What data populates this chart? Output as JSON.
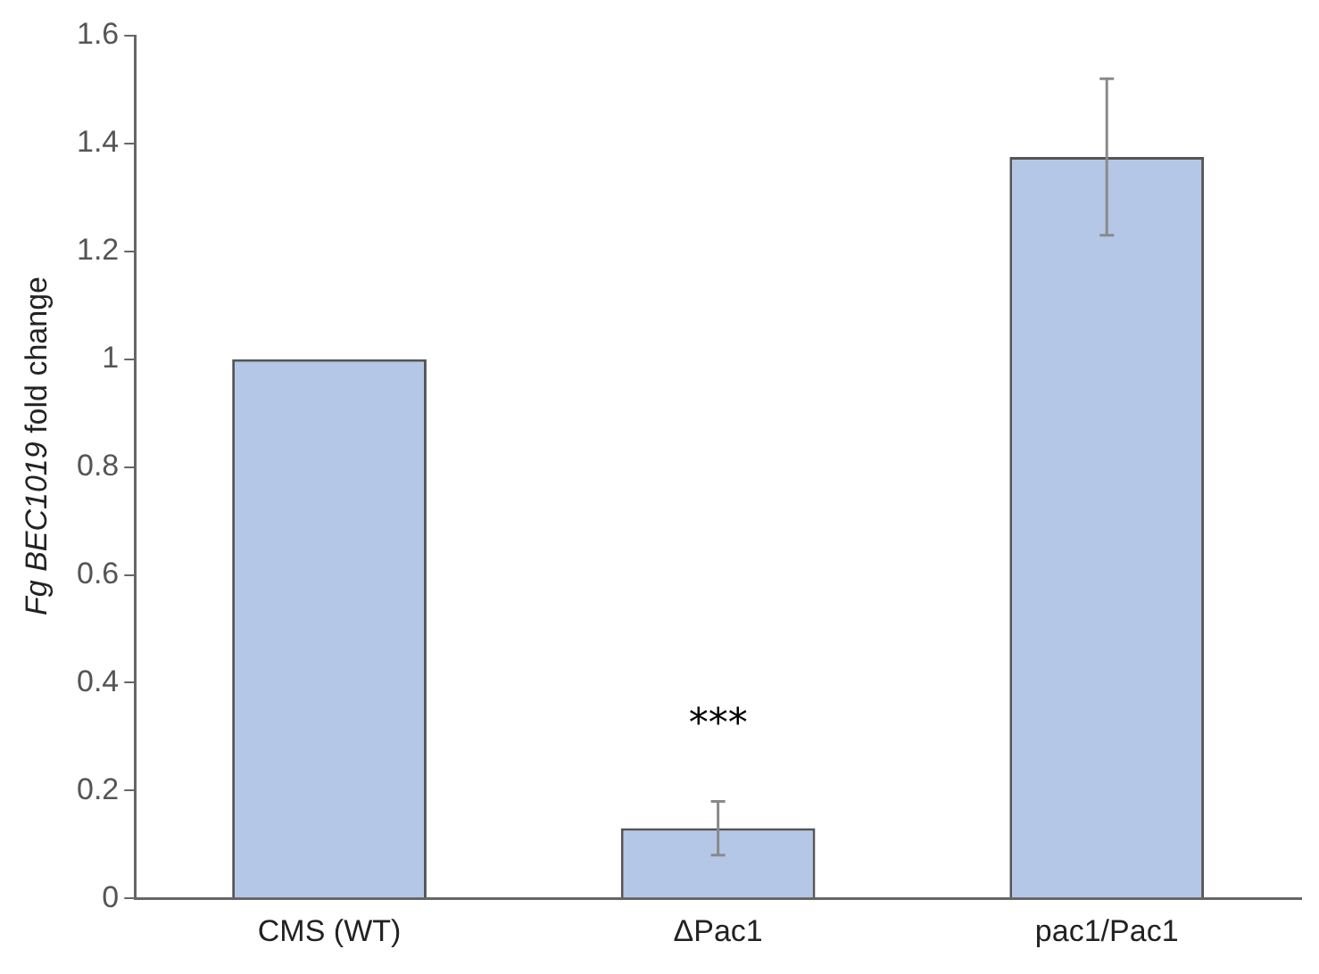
{
  "chart_data": {
    "type": "bar",
    "ylabel": "Fg BEC1019 fold change",
    "categories": [
      "CMS (WT)",
      "ΔPac1",
      "pac1/Pac1"
    ],
    "values": [
      1,
      0.13,
      1.375
    ],
    "errors": [
      null,
      0.05,
      0.145
    ],
    "color": "#b4c7e7",
    "ylim": [
      0,
      1.6
    ],
    "yticks": [
      0,
      0.2,
      0.4,
      0.6,
      0.8,
      1,
      1.2,
      1.4,
      1.6
    ],
    "grid": false,
    "legend": false,
    "annotations": [
      "***"
    ]
  }
}
